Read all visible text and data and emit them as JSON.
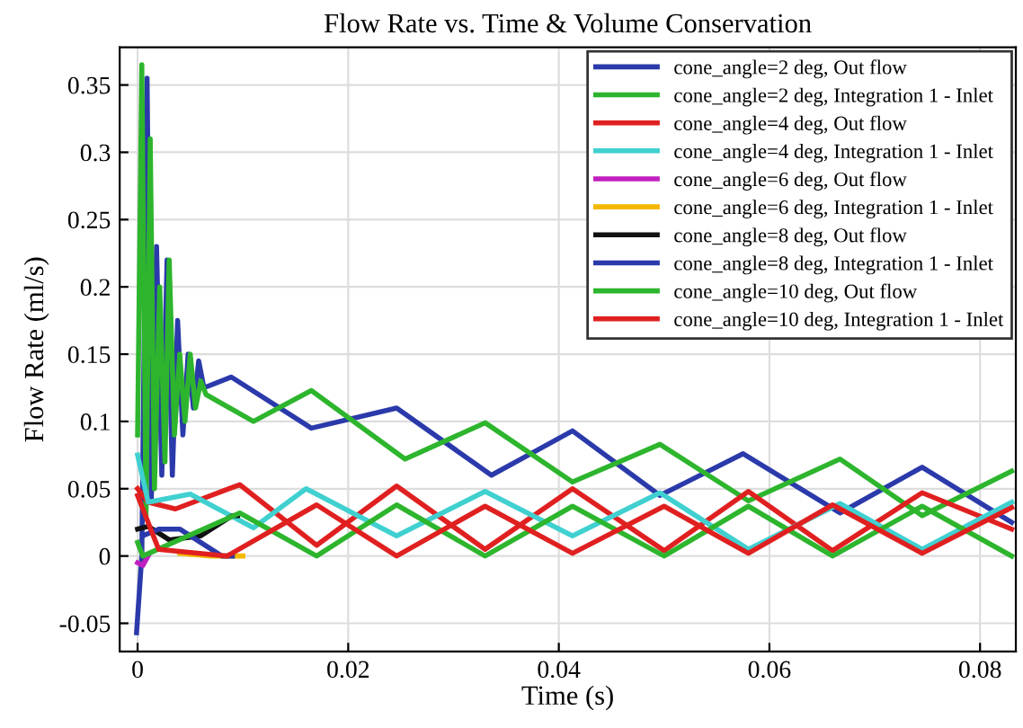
{
  "chart_data": {
    "type": "line",
    "title": "Flow Rate vs. Time & Volume Conservation",
    "xlabel": "Time (s)",
    "ylabel": "Flow Rate (ml/s)",
    "xlim": [
      -0.0017,
      0.0834
    ],
    "ylim": [
      -0.071,
      0.378
    ],
    "xticks": [
      0,
      0.02,
      0.04,
      0.06,
      0.08
    ],
    "yticks": [
      -0.05,
      0,
      0.05,
      0.1,
      0.15,
      0.2,
      0.25,
      0.3,
      0.35
    ],
    "grid": true,
    "legend": "top right",
    "marker": "none",
    "line_style": "solid",
    "series": [
      {
        "name": "cone_angle=2 deg, Out flow",
        "color": "#2b3aaa",
        "x": [
          -0.0001,
          0.0004,
          0.0009,
          0.0013,
          0.0018,
          0.0023,
          0.0028,
          0.0033,
          0.0038,
          0.0043,
          0.0048,
          0.0053,
          0.0058,
          0.0063,
          0.0089,
          0.0165,
          0.0246,
          0.0336,
          0.0413,
          0.0496,
          0.0575,
          0.0667,
          0.0745,
          0.083
        ],
        "values": [
          -0.057,
          0.0,
          0.355,
          0.04,
          0.23,
          0.06,
          0.22,
          0.06,
          0.175,
          0.09,
          0.15,
          0.11,
          0.145,
          0.125,
          0.133,
          0.095,
          0.11,
          0.06,
          0.093,
          0.045,
          0.076,
          0.032,
          0.066,
          0.025
        ]
      },
      {
        "name": "cone_angle=2 deg, Integration 1 - Inlet",
        "color": "#2db52d",
        "x": [
          0.0,
          0.0004,
          0.0008,
          0.0012,
          0.0016,
          0.0021,
          0.0026,
          0.003,
          0.0035,
          0.004,
          0.0045,
          0.005,
          0.0055,
          0.006,
          0.0065,
          0.011,
          0.0165,
          0.0254,
          0.033,
          0.0413,
          0.0496,
          0.058,
          0.0667,
          0.0745,
          0.083
        ],
        "values": [
          0.09,
          0.365,
          0.03,
          0.31,
          0.05,
          0.2,
          0.07,
          0.22,
          0.09,
          0.15,
          0.1,
          0.15,
          0.11,
          0.13,
          0.12,
          0.1,
          0.123,
          0.072,
          0.099,
          0.055,
          0.083,
          0.041,
          0.072,
          0.03,
          0.063
        ]
      },
      {
        "name": "cone_angle=4 deg, Out flow",
        "color": "#e02020",
        "x": [
          0.0,
          0.001,
          0.0036,
          0.0097,
          0.017,
          0.0246,
          0.033,
          0.0413,
          0.05,
          0.058,
          0.066,
          0.0745,
          0.083
        ],
        "values": [
          0.05,
          0.04,
          0.035,
          0.053,
          0.008,
          0.052,
          0.005,
          0.05,
          0.004,
          0.048,
          0.004,
          0.047,
          0.02
        ]
      },
      {
        "name": "cone_angle=4 deg, Integration 1 - Inlet",
        "color": "#40d0d0",
        "x": [
          0.0,
          0.001,
          0.005,
          0.011,
          0.016,
          0.0246,
          0.033,
          0.0413,
          0.0496,
          0.058,
          0.0667,
          0.0745,
          0.083
        ],
        "values": [
          0.075,
          0.04,
          0.046,
          0.021,
          0.05,
          0.015,
          0.048,
          0.015,
          0.047,
          0.005,
          0.039,
          0.005,
          0.04
        ]
      },
      {
        "name": "cone_angle=6 deg, Out flow",
        "color": "#c020c0",
        "x": [
          0.0,
          0.0005,
          0.001
        ],
        "values": [
          -0.005,
          -0.007,
          0.0
        ]
      },
      {
        "name": "cone_angle=6 deg, Integration 1 - Inlet",
        "color": "#f5b800",
        "x": [
          0.004,
          0.007,
          0.01
        ],
        "values": [
          0.002,
          0.0,
          0.0
        ]
      },
      {
        "name": "cone_angle=8 deg, Out flow",
        "color": "#111111",
        "x": [
          0.0,
          0.001,
          0.003,
          0.006,
          0.009,
          0.0095
        ],
        "values": [
          0.02,
          0.022,
          0.012,
          0.015,
          0.03,
          0.03
        ]
      },
      {
        "name": "cone_angle=8 deg, Integration 1 - Inlet",
        "color": "#2b3aaa",
        "x": [
          0.0005,
          0.002,
          0.004,
          0.006,
          0.008,
          0.009
        ],
        "values": [
          0.015,
          0.02,
          0.02,
          0.01,
          0.0,
          0.0
        ]
      },
      {
        "name": "cone_angle=10 deg, Out flow",
        "color": "#2db52d",
        "x": [
          0.0,
          0.0005,
          0.0097,
          0.017,
          0.0246,
          0.033,
          0.0413,
          0.05,
          0.058,
          0.066,
          0.0745,
          0.083
        ],
        "values": [
          0.01,
          0.0,
          0.032,
          0.0,
          0.038,
          0.0,
          0.037,
          0.0,
          0.037,
          0.0,
          0.037,
          0.0
        ]
      },
      {
        "name": "cone_angle=10 deg, Integration 1 - Inlet",
        "color": "#e02020",
        "x": [
          0.0,
          0.002,
          0.0085,
          0.017,
          0.0246,
          0.033,
          0.0413,
          0.05,
          0.058,
          0.066,
          0.0745,
          0.083
        ],
        "values": [
          0.045,
          0.005,
          0.0,
          0.038,
          0.0,
          0.037,
          0.002,
          0.037,
          0.002,
          0.038,
          0.002,
          0.036
        ]
      }
    ]
  }
}
